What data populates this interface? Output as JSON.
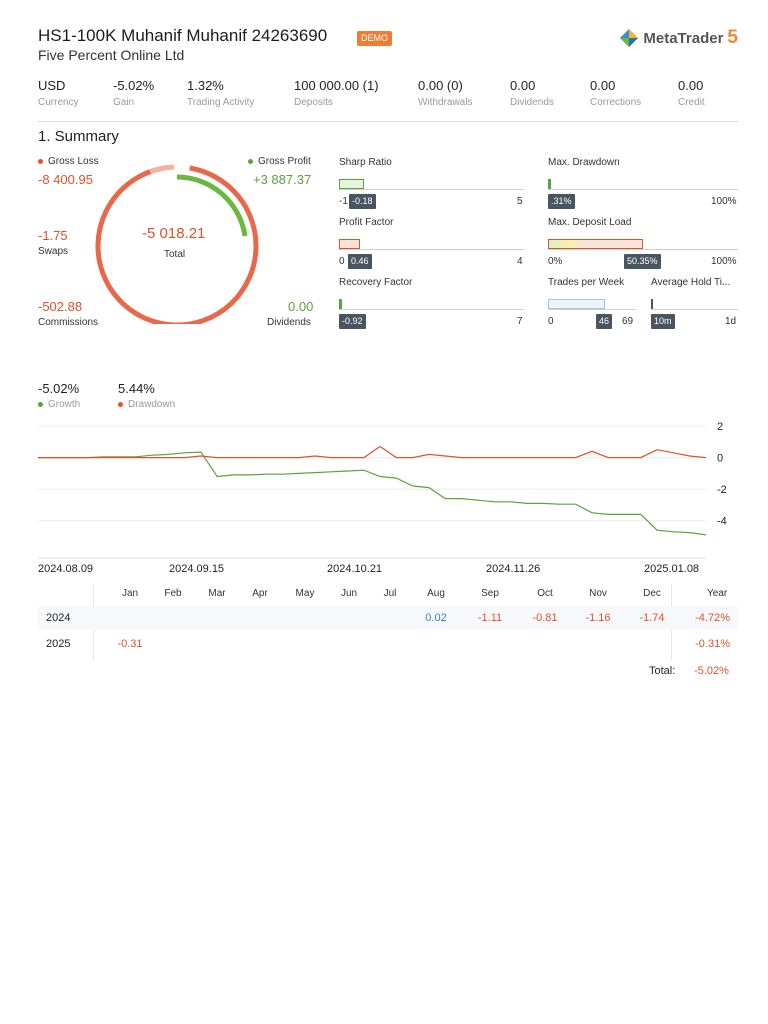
{
  "header": {
    "account_title": "HS1-100K Muhanif Muhanif 24263690",
    "badge": "DEMO",
    "company": "Five Percent Online Ltd",
    "logo_text": "MetaTrader",
    "logo_num": "5"
  },
  "stats": [
    {
      "value": "USD",
      "label": "Currency"
    },
    {
      "value": "-5.02%",
      "label": "Gain"
    },
    {
      "value": "1.32%",
      "label": "Trading Activity"
    },
    {
      "value": "100 000.00 (1)",
      "label": "Deposits"
    },
    {
      "value": "0.00 (0)",
      "label": "Withdrawals"
    },
    {
      "value": "0.00",
      "label": "Dividends"
    },
    {
      "value": "0.00",
      "label": "Corrections"
    },
    {
      "value": "0.00",
      "label": "Credit"
    }
  ],
  "summary": {
    "heading": "1. Summary",
    "gross_loss_label": "Gross Loss",
    "gross_loss": "-8 400.95",
    "gross_profit_label": "Gross Profit",
    "gross_profit": "+3 887.37",
    "swaps": "-1.75",
    "swaps_label": "Swaps",
    "commissions": "-502.88",
    "commissions_label": "Commissions",
    "dividends": "0.00",
    "dividends_label": "Dividends",
    "total": "-5 018.21",
    "total_label": "Total",
    "colors": {
      "loss": "#e8684a",
      "profit": "#6ab83e",
      "swap": "#f3b3a0"
    }
  },
  "metrics": {
    "sharp": {
      "title": "Sharp Ratio",
      "min": "-1",
      "max": "5",
      "value": "-0.18"
    },
    "drawdown": {
      "title": "Max. Drawdown",
      "min": "",
      "max": "100%",
      "value": ".31%"
    },
    "profit_factor": {
      "title": "Profit Factor",
      "min": "0",
      "max": "4",
      "value": "0.46"
    },
    "deposit_load": {
      "title": "Max. Deposit Load",
      "min": "0%",
      "max": "100%",
      "value": "50.35%"
    },
    "recovery": {
      "title": "Recovery Factor",
      "min": "",
      "max": "7",
      "value": "-0.92"
    },
    "trades_week": {
      "title": "Trades per Week",
      "min": "0",
      "max": "69",
      "value": "46"
    },
    "hold_time": {
      "title": "Average Hold Ti...",
      "min": "",
      "max": "1d",
      "value": "10m"
    }
  },
  "growth_legend": {
    "growth_value": "-5.02%",
    "growth_label": "Growth",
    "drawdown_value": "5.44%",
    "drawdown_label": "Drawdown"
  },
  "chart_data": {
    "type": "line",
    "x_labels": [
      "2024.08.09",
      "2024.09.15",
      "2024.10.21",
      "2024.11.26",
      "2025.01.08"
    ],
    "y_ticks": [
      "2",
      "0",
      "-2",
      "-4"
    ],
    "ylim": [
      -5.6,
      2
    ],
    "series": [
      {
        "name": "Growth",
        "color": "#5aa43c",
        "values": [
          0,
          0,
          0,
          0,
          0.05,
          0.05,
          0.05,
          0.15,
          0.2,
          0.3,
          0.35,
          -1.2,
          -1.1,
          -1.1,
          -1.05,
          -1.05,
          -1.0,
          -0.95,
          -0.9,
          -0.85,
          -0.8,
          -1.2,
          -1.3,
          -1.8,
          -1.9,
          -2.6,
          -2.6,
          -2.7,
          -2.8,
          -2.8,
          -2.9,
          -2.9,
          -2.95,
          -2.95,
          -3.5,
          -3.6,
          -3.6,
          -3.6,
          -4.6,
          -4.7,
          -4.75,
          -4.9
        ]
      },
      {
        "name": "Drawdown",
        "color": "#e0522a",
        "values": [
          0,
          0,
          0,
          0,
          0,
          0,
          0,
          0,
          0,
          0,
          0.1,
          0,
          0,
          0,
          0,
          0,
          0,
          0.1,
          0,
          0,
          0,
          0.7,
          0,
          0,
          0.2,
          0.1,
          0,
          0,
          0,
          0,
          0,
          0,
          0,
          0,
          0.4,
          0,
          0,
          0,
          0.5,
          0.3,
          0.1,
          0
        ]
      }
    ]
  },
  "monthly": {
    "months": [
      "Jan",
      "Feb",
      "Mar",
      "Apr",
      "May",
      "Jun",
      "Jul",
      "Aug",
      "Sep",
      "Oct",
      "Nov",
      "Dec",
      "Year"
    ],
    "rows": [
      {
        "year": "2024",
        "cells": [
          "",
          "",
          "",
          "",
          "",
          "",
          "",
          "0.02",
          "-1.11",
          "-0.81",
          "-1.16",
          "-1.74"
        ],
        "total": "-4.72%"
      },
      {
        "year": "2025",
        "cells": [
          "-0.31",
          "",
          "",
          "",
          "",
          "",
          "",
          "",
          "",
          "",
          "",
          ""
        ],
        "total": "-0.31%"
      }
    ],
    "total_label": "Total:",
    "total_value": "-5.02%"
  }
}
